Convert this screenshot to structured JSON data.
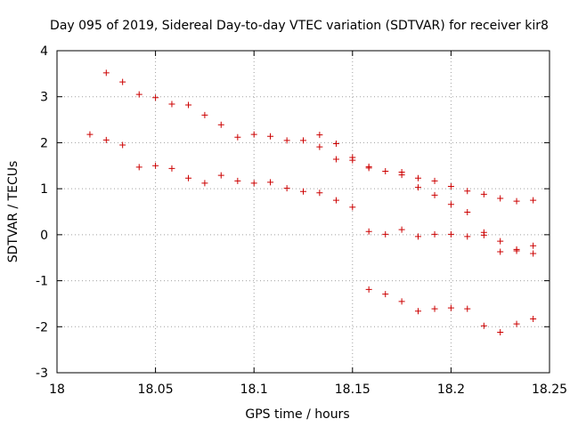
{
  "chart_data": {
    "type": "scatter",
    "title": "Day 095 of 2019, Sidereal Day-to-day VTEC variation (SDTVAR) for receiver kir8",
    "xlabel": "GPS time / hours",
    "ylabel": "SDTVAR / TECUs",
    "xlim": [
      18,
      18.25
    ],
    "ylim": [
      -3,
      4
    ],
    "xticks": [
      18,
      18.05,
      18.1,
      18.15,
      18.2,
      18.25
    ],
    "xtick_labels": [
      "18",
      "18.05",
      "18.1",
      "18.15",
      "18.2",
      "18.25"
    ],
    "yticks": [
      -3,
      -2,
      -1,
      0,
      1,
      2,
      3,
      4
    ],
    "ytick_labels": [
      "-3",
      "-2",
      "-1",
      "0",
      "1",
      "2",
      "3",
      "4"
    ],
    "grid": true,
    "marker": "plus",
    "color": "#cc0000",
    "series": [
      {
        "name": "SDTVAR",
        "points": [
          [
            18.0167,
            2.18
          ],
          [
            18.025,
            3.52
          ],
          [
            18.025,
            2.06
          ],
          [
            18.0333,
            3.32
          ],
          [
            18.0333,
            1.95
          ],
          [
            18.0417,
            3.05
          ],
          [
            18.0417,
            1.47
          ],
          [
            18.05,
            2.98
          ],
          [
            18.05,
            1.5
          ],
          [
            18.0583,
            2.84
          ],
          [
            18.0583,
            1.44
          ],
          [
            18.0667,
            2.82
          ],
          [
            18.0667,
            1.23
          ],
          [
            18.075,
            2.6
          ],
          [
            18.075,
            1.12
          ],
          [
            18.0833,
            2.39
          ],
          [
            18.0833,
            1.29
          ],
          [
            18.0917,
            2.12
          ],
          [
            18.0917,
            1.17
          ],
          [
            18.1,
            2.18
          ],
          [
            18.1,
            1.12
          ],
          [
            18.1083,
            2.14
          ],
          [
            18.1083,
            1.14
          ],
          [
            18.1167,
            2.05
          ],
          [
            18.1167,
            1.01
          ],
          [
            18.125,
            2.05
          ],
          [
            18.125,
            0.94
          ],
          [
            18.1333,
            2.17
          ],
          [
            18.1333,
            1.91
          ],
          [
            18.1333,
            0.91
          ],
          [
            18.1417,
            1.98
          ],
          [
            18.1417,
            1.64
          ],
          [
            18.1417,
            0.75
          ],
          [
            18.15,
            1.68
          ],
          [
            18.15,
            1.62
          ],
          [
            18.15,
            0.6
          ],
          [
            18.1583,
            1.48
          ],
          [
            18.1583,
            1.45
          ],
          [
            18.1583,
            0.07
          ],
          [
            18.1583,
            -1.19
          ],
          [
            18.1667,
            1.38
          ],
          [
            18.1667,
            0.01
          ],
          [
            18.1667,
            -1.29
          ],
          [
            18.175,
            1.36
          ],
          [
            18.175,
            1.3
          ],
          [
            18.175,
            0.11
          ],
          [
            18.175,
            -1.45
          ],
          [
            18.1833,
            1.23
          ],
          [
            18.1833,
            1.03
          ],
          [
            18.1833,
            -0.04
          ],
          [
            18.1833,
            -1.66
          ],
          [
            18.1917,
            1.17
          ],
          [
            18.1917,
            0.86
          ],
          [
            18.1917,
            0.01
          ],
          [
            18.1917,
            -1.61
          ],
          [
            18.2,
            1.05
          ],
          [
            18.2,
            0.66
          ],
          [
            18.2,
            0.01
          ],
          [
            18.2,
            -1.59
          ],
          [
            18.2083,
            0.95
          ],
          [
            18.2083,
            0.49
          ],
          [
            18.2083,
            -0.04
          ],
          [
            18.2083,
            -1.61
          ],
          [
            18.2167,
            0.88
          ],
          [
            18.2167,
            0.05
          ],
          [
            18.2167,
            -0.01
          ],
          [
            18.2167,
            -1.98
          ],
          [
            18.225,
            0.79
          ],
          [
            18.225,
            -0.14
          ],
          [
            18.225,
            -0.37
          ],
          [
            18.225,
            -2.12
          ],
          [
            18.2333,
            0.73
          ],
          [
            18.2333,
            -0.32
          ],
          [
            18.2333,
            -0.35
          ],
          [
            18.2333,
            -1.94
          ],
          [
            18.2417,
            0.75
          ],
          [
            18.2417,
            -0.24
          ],
          [
            18.2417,
            -0.41
          ],
          [
            18.2417,
            -1.83
          ]
        ]
      }
    ]
  }
}
